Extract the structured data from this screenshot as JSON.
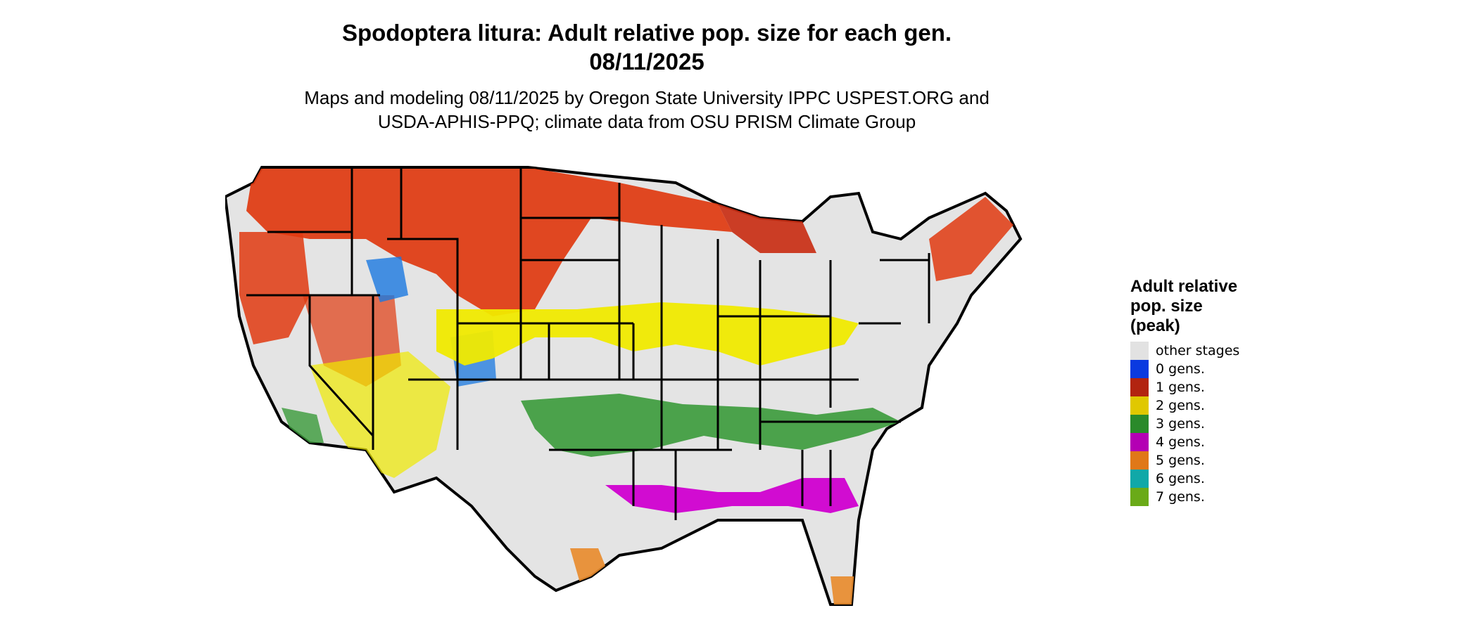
{
  "title": {
    "line1": "Spodoptera litura: Adult relative pop. size for each gen.",
    "line2": "08/11/2025"
  },
  "subtitle": {
    "line1": "Maps and modeling 08/11/2025 by Oregon State University IPPC USPEST.ORG and",
    "line2": "USDA-APHIS-PPQ; climate data from OSU PRISM Climate Group"
  },
  "legend": {
    "title_line1": "Adult relative",
    "title_line2": "pop. size",
    "title_line3": "(peak)",
    "items": [
      {
        "label": "other stages",
        "color": "#e2e2e2"
      },
      {
        "label": "0 gens.",
        "color": "#0a3ae0"
      },
      {
        "label": "1 gens.",
        "color": "#b22410"
      },
      {
        "label": "2 gens.",
        "color": "#e0c800"
      },
      {
        "label": "3 gens.",
        "color": "#2a8a2a"
      },
      {
        "label": "4 gens.",
        "color": "#b400b4"
      },
      {
        "label": "5 gens.",
        "color": "#e07818"
      },
      {
        "label": "6 gens.",
        "color": "#10a8a8"
      },
      {
        "label": "7 gens.",
        "color": "#6aaa18"
      }
    ]
  },
  "map_colors": {
    "background": "#e4e4e4",
    "border": "#000000",
    "gen1": "#e03a10",
    "gen2": "#f0ea00",
    "gen3": "#3a9a3a",
    "gen4": "#d000d0",
    "gen5": "#e88a2a",
    "gen0": "#1a78e0"
  }
}
